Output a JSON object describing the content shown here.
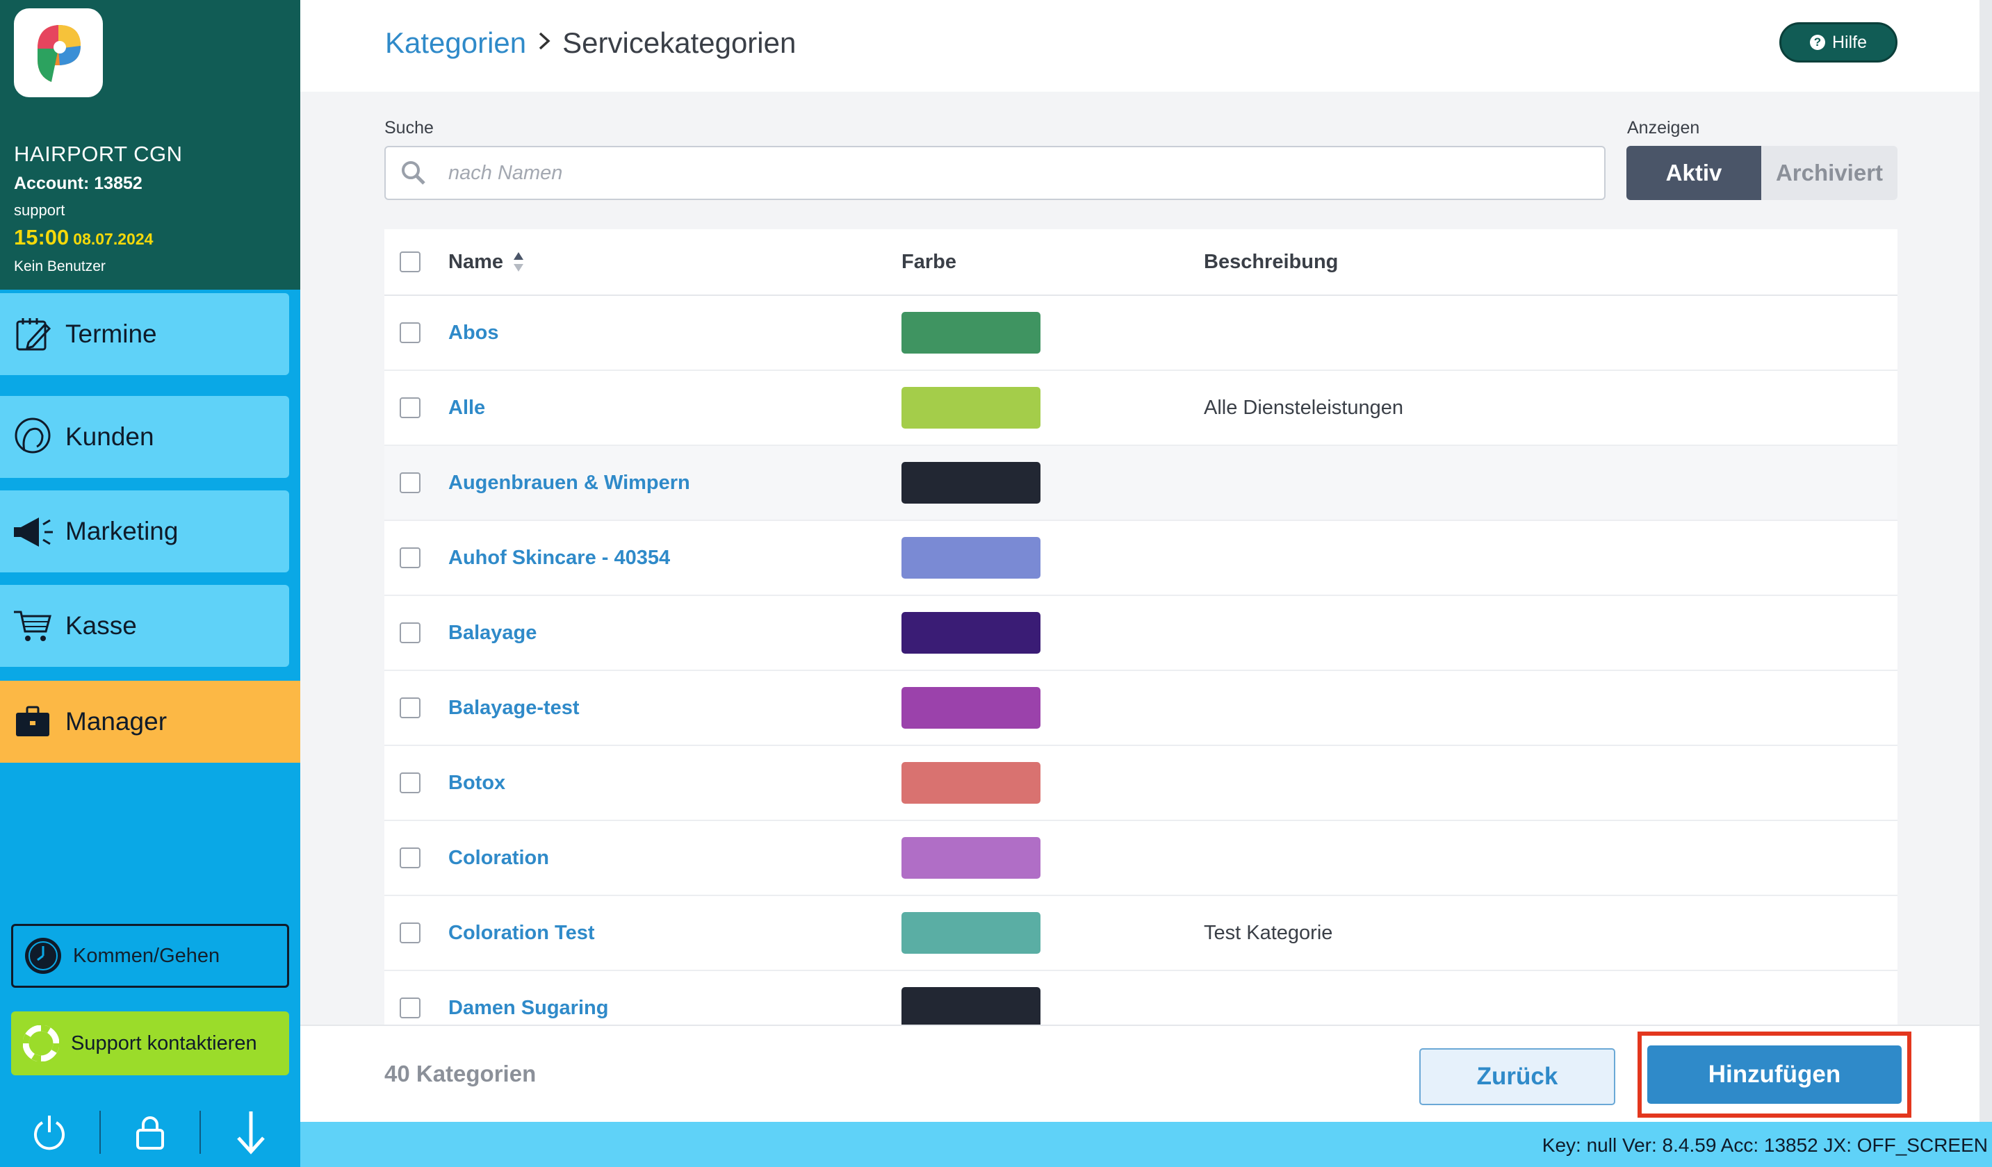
{
  "sidebar": {
    "account_name": "HAIRPORT CGN",
    "account_number": "Account: 13852",
    "user": "support",
    "time": "15:00",
    "date": "08.07.2024",
    "no_user": "Kein Benutzer",
    "nav": [
      {
        "label": "Termine",
        "icon": "calendar-edit-icon"
      },
      {
        "label": "Kunden",
        "icon": "customer-head-icon"
      },
      {
        "label": "Marketing",
        "icon": "megaphone-icon"
      },
      {
        "label": "Kasse",
        "icon": "shopping-cart-icon"
      },
      {
        "label": "Manager",
        "icon": "briefcase-icon"
      }
    ],
    "active_nav": "Manager",
    "kommen_gehen": "Kommen/Gehen",
    "support_label": "Support kontaktieren",
    "bottom_icons": [
      "power-icon",
      "lock-icon",
      "arrow-down-icon"
    ]
  },
  "header": {
    "breadcrumb_parent": "Kategorien",
    "breadcrumb_current": "Servicekategorien",
    "help_label": "Hilfe"
  },
  "search": {
    "label": "Suche",
    "placeholder": "nach Namen",
    "value": ""
  },
  "filter": {
    "label": "Anzeigen",
    "active_label": "Aktiv",
    "archived_label": "Archiviert",
    "selected": "Aktiv"
  },
  "table": {
    "columns": {
      "name": "Name",
      "color": "Farbe",
      "description": "Beschreibung"
    },
    "rows": [
      {
        "name": "Abos",
        "color": "#3f9461",
        "description": ""
      },
      {
        "name": "Alle",
        "color": "#a4cd4a",
        "description": "Alle Diensteleistungen"
      },
      {
        "name": "Augenbrauen & Wimpern",
        "color": "#222733",
        "description": ""
      },
      {
        "name": "Auhof Skincare - 40354",
        "color": "#7a8ad4",
        "description": ""
      },
      {
        "name": "Balayage",
        "color": "#3a1c75",
        "description": ""
      },
      {
        "name": "Balayage-test",
        "color": "#9b42ab",
        "description": ""
      },
      {
        "name": "Botox",
        "color": "#d97270",
        "description": ""
      },
      {
        "name": "Coloration",
        "color": "#b06ec6",
        "description": ""
      },
      {
        "name": "Coloration Test",
        "color": "#5aaea4",
        "description": "Test Kategorie"
      },
      {
        "name": "Damen Sugaring",
        "color": "#222733",
        "description": ""
      }
    ]
  },
  "footer": {
    "count": "40 Kategorien",
    "back_label": "Zurück",
    "add_label": "Hinzufügen"
  },
  "status": {
    "text": "Key: null Ver: 8.4.59 Acc: 13852  JX: OFF_SCREEN"
  }
}
